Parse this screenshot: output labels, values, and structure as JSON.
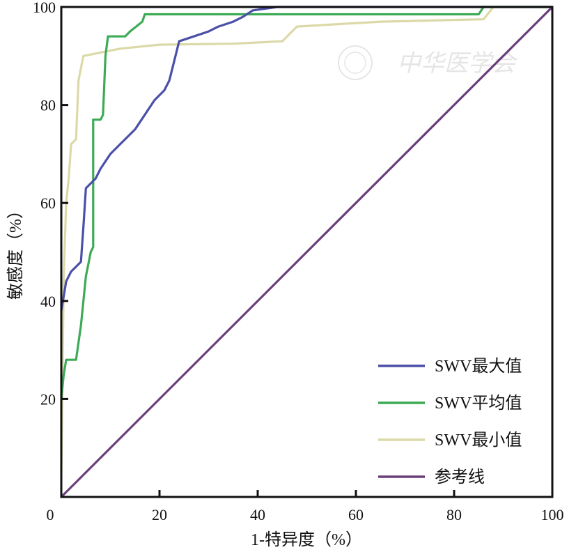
{
  "chart_data": {
    "type": "line",
    "title": "",
    "xlabel": "1-特异度（%）",
    "ylabel": "敏感度（%）",
    "xlim": [
      0,
      100
    ],
    "ylim": [
      0,
      100
    ],
    "xticks": [
      "0",
      "20",
      "40",
      "60",
      "80",
      "100"
    ],
    "yticks": [
      "20",
      "40",
      "60",
      "80",
      "100"
    ],
    "grid": false,
    "legend_position": "bottom-right",
    "watermark": "中华医学会",
    "series": [
      {
        "name": "SWV最大值",
        "color": "#4a4fa8",
        "x": [
          0,
          1,
          2,
          3,
          4,
          4.5,
          5,
          6,
          7,
          8,
          10,
          12,
          15,
          17,
          19,
          21,
          22,
          23,
          24,
          27,
          30,
          32,
          35,
          37,
          39,
          44,
          100
        ],
        "y": [
          38,
          44,
          46,
          47,
          48,
          55,
          63,
          64,
          65,
          67,
          70,
          72,
          75,
          78,
          81,
          83,
          85,
          89,
          93,
          94,
          95,
          96,
          97,
          98,
          99.3,
          100,
          100
        ]
      },
      {
        "name": "SWV平均值",
        "color": "#3daa55",
        "x": [
          0,
          0.5,
          1,
          3,
          4,
          5,
          6,
          6.5,
          6.5,
          8,
          8.5,
          9,
          9.5,
          13,
          14,
          16.5,
          17,
          85,
          86,
          100
        ],
        "y": [
          20,
          25,
          28,
          28,
          35,
          45,
          50,
          51,
          77,
          77,
          78,
          90,
          94,
          94,
          95,
          97,
          98.5,
          98.5,
          100,
          100
        ]
      },
      {
        "name": "SWV最小值",
        "color": "#dcd9a8",
        "x": [
          0,
          0.5,
          1,
          1.5,
          2,
          3,
          3.5,
          4.5,
          7,
          12,
          20,
          35,
          45,
          48,
          65,
          86,
          88,
          100
        ],
        "y": [
          5,
          45,
          60,
          65,
          72,
          73,
          85,
          90,
          90.5,
          91.5,
          92.3,
          92.5,
          93,
          96,
          97,
          97.5,
          100,
          100
        ]
      },
      {
        "name": "参考线",
        "color": "#6a3f7a",
        "x": [
          0,
          100
        ],
        "y": [
          0,
          100
        ]
      }
    ]
  }
}
